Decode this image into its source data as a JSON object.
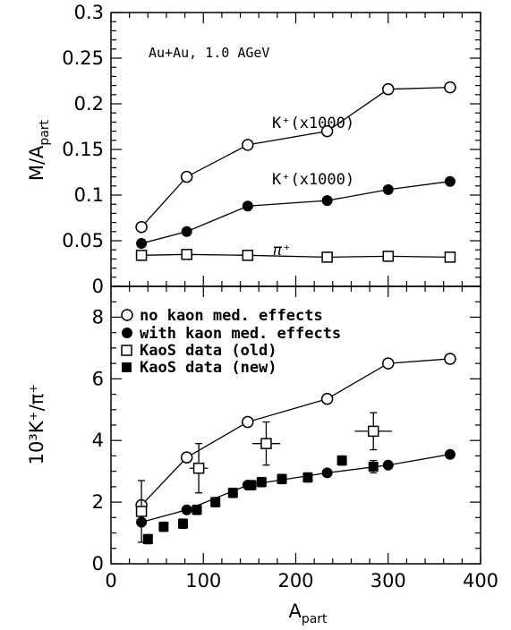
{
  "chart_data": [
    {
      "panel": "top",
      "type": "line",
      "ylabel": "M/A",
      "ylabel_sub": "part",
      "xlim": [
        0,
        400
      ],
      "ylim": [
        0,
        0.3
      ],
      "yticks": [
        "0",
        "0.05",
        "0.1",
        "0.15",
        "0.2",
        "0.25",
        "0.3"
      ],
      "annotation": "Au+Au, 1.0 AGeV",
      "series": [
        {
          "label": "K⁺(x1000)",
          "marker": "open-circle",
          "connected": true,
          "x": [
            33,
            82,
            148,
            234,
            300,
            367
          ],
          "y": [
            0.065,
            0.12,
            0.155,
            0.17,
            0.216,
            0.218
          ]
        },
        {
          "label": "K⁺(x1000)",
          "marker": "filled-circle",
          "connected": true,
          "x": [
            33,
            82,
            148,
            234,
            300,
            367
          ],
          "y": [
            0.047,
            0.06,
            0.088,
            0.094,
            0.106,
            0.115
          ]
        },
        {
          "label": "π⁺",
          "marker": "open-square",
          "connected": true,
          "x": [
            33,
            82,
            148,
            234,
            300,
            367
          ],
          "y": [
            0.034,
            0.035,
            0.034,
            0.032,
            0.033,
            0.032
          ]
        }
      ]
    },
    {
      "panel": "bottom",
      "type": "scatter",
      "ylabel": "10³K⁺/π⁺",
      "xlabel": "A",
      "xlabel_sub": "part",
      "xlim": [
        0,
        400
      ],
      "ylim": [
        0,
        9
      ],
      "xticks": [
        "0",
        "100",
        "200",
        "300",
        "400"
      ],
      "yticks": [
        "0",
        "2",
        "4",
        "6",
        "8"
      ],
      "legend": [
        "no kaon med. effects",
        "with kaon med. effects",
        "KaoS data (old)",
        "KaoS data (new)"
      ],
      "series": [
        {
          "name": "no kaon med. effects",
          "marker": "open-circle",
          "connected": true,
          "x": [
            33,
            82,
            148,
            234,
            300,
            367
          ],
          "y": [
            1.9,
            3.45,
            4.6,
            5.35,
            6.5,
            6.65
          ]
        },
        {
          "name": "with kaon med. effects",
          "marker": "filled-circle",
          "connected": true,
          "x": [
            33,
            82,
            148,
            234,
            300,
            367
          ],
          "y": [
            1.35,
            1.75,
            2.55,
            2.95,
            3.2,
            3.55
          ]
        },
        {
          "name": "KaoS data (old)",
          "marker": "open-square",
          "connected": false,
          "x": [
            33,
            95,
            168,
            284
          ],
          "y": [
            1.7,
            3.1,
            3.9,
            4.3
          ],
          "xerr": [
            0,
            10,
            15,
            20
          ],
          "yerr": [
            1.0,
            0.8,
            0.7,
            0.6
          ]
        },
        {
          "name": "KaoS data (new)",
          "marker": "filled-square",
          "connected": false,
          "x": [
            40,
            57,
            78,
            93,
            113,
            132,
            152,
            163,
            185,
            213,
            250,
            284
          ],
          "y": [
            0.8,
            1.2,
            1.3,
            1.75,
            2.0,
            2.3,
            2.55,
            2.65,
            2.75,
            2.8,
            3.35,
            3.15
          ],
          "xerr": [
            0,
            0,
            0,
            0,
            0,
            0,
            0,
            0,
            0,
            0,
            0,
            0
          ],
          "yerr": [
            0.15,
            0.15,
            0.15,
            0.15,
            0.15,
            0.15,
            0.15,
            0.15,
            0.15,
            0.15,
            0.15,
            0.2
          ]
        }
      ]
    }
  ]
}
